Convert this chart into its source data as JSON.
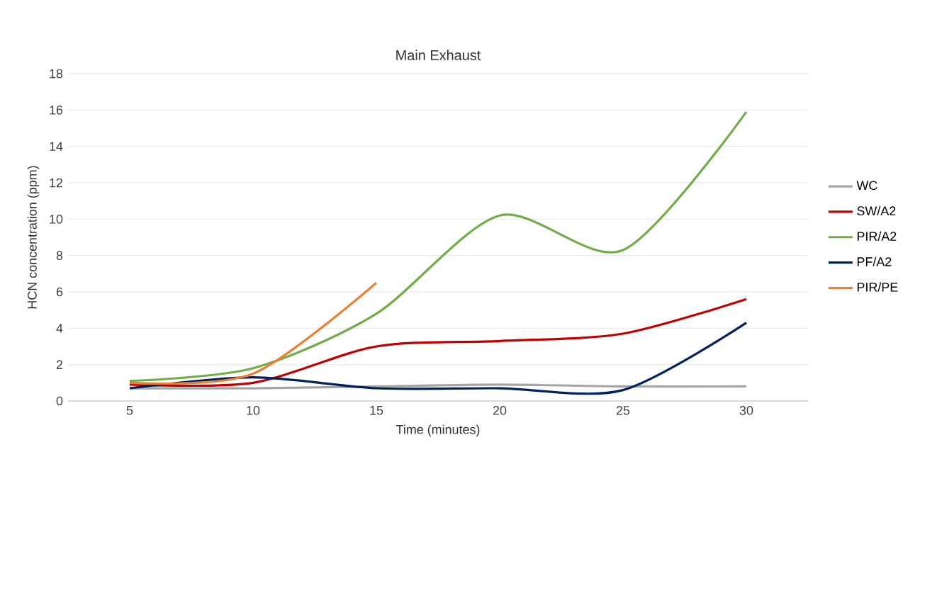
{
  "chart_data": {
    "type": "line",
    "title": "Main Exhaust",
    "xlabel": "Time (minutes)",
    "ylabel": "HCN concentration (ppm)",
    "categories": [
      "5",
      "10",
      "15",
      "20",
      "25",
      "30"
    ],
    "series": [
      {
        "name": "WC",
        "color": "#a5a5a5",
        "values": [
          0.7,
          0.7,
          0.8,
          0.9,
          0.8,
          0.8
        ]
      },
      {
        "name": "SW/A2",
        "color": "#c00000",
        "values": [
          0.9,
          1.0,
          3.0,
          3.3,
          3.7,
          5.6
        ]
      },
      {
        "name": "PIR/A2",
        "color": "#70ad47",
        "values": [
          1.1,
          1.8,
          4.8,
          10.2,
          8.3,
          15.9
        ]
      },
      {
        "name": "PF/A2",
        "color": "#002060",
        "values": [
          0.7,
          1.3,
          0.7,
          0.7,
          0.6,
          4.3
        ]
      },
      {
        "name": "PIR/PE",
        "color": "#ed7d31",
        "values": [
          1.0,
          1.5,
          6.5,
          null,
          null,
          null
        ]
      }
    ],
    "ylim": [
      0,
      18
    ],
    "yticks": [
      0,
      2,
      4,
      6,
      8,
      10,
      12,
      14,
      16,
      18
    ],
    "grid": "y",
    "legend": "right",
    "marker": "none",
    "line_style": "solid"
  }
}
